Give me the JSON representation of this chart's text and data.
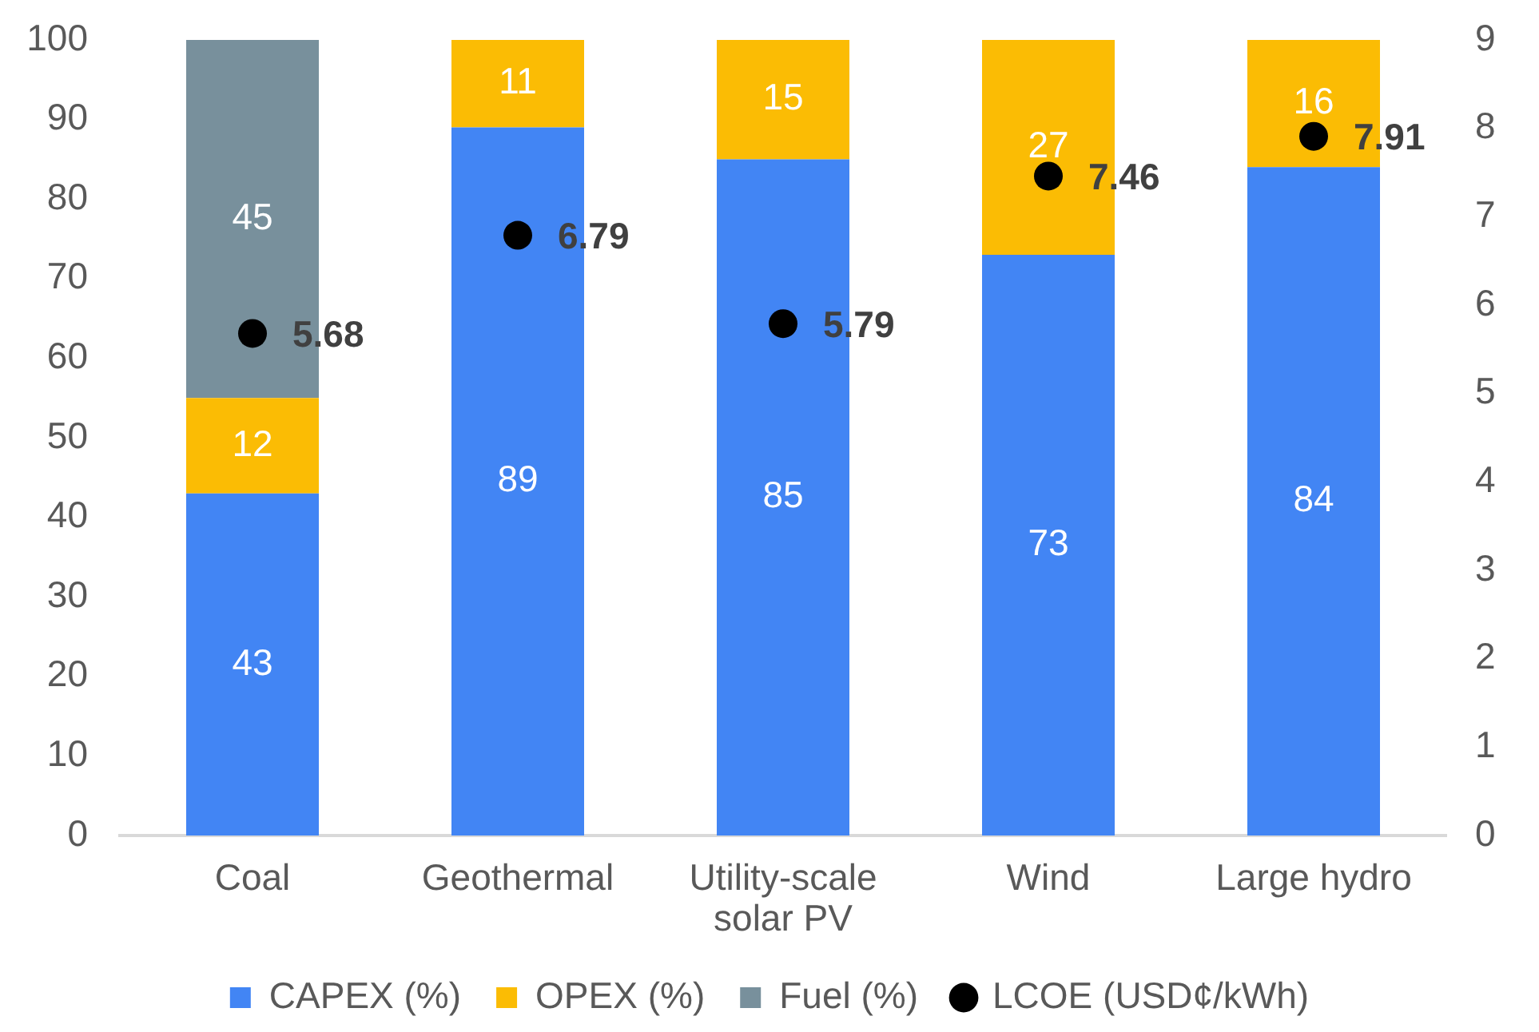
{
  "chart_data": {
    "type": "bar",
    "stacked": true,
    "categories": [
      "Coal",
      "Geothermal",
      "Utility-scale solar PV",
      "Wind",
      "Large hydro"
    ],
    "series": [
      {
        "name": "CAPEX (%)",
        "color": "#4285f4",
        "values": [
          43,
          89,
          85,
          73,
          84
        ]
      },
      {
        "name": "OPEX (%)",
        "color": "#fbbc04",
        "values": [
          12,
          11,
          15,
          27,
          16
        ]
      },
      {
        "name": "Fuel (%)",
        "color": "#78909c",
        "values": [
          45,
          null,
          null,
          null,
          null
        ]
      },
      {
        "name": "LCOE (USD¢/kWh)",
        "type": "scatter",
        "axis": "y2",
        "color": "#000000",
        "values": [
          5.68,
          6.79,
          5.79,
          7.46,
          7.91
        ]
      }
    ],
    "ylim": [
      0,
      100
    ],
    "yticks": [
      0,
      10,
      20,
      30,
      40,
      50,
      60,
      70,
      80,
      90,
      100
    ],
    "y2lim": [
      0,
      9
    ],
    "y2ticks": [
      0,
      1,
      2,
      3,
      4,
      5,
      6,
      7,
      8,
      9
    ],
    "data_labels": true,
    "legend": "bottom",
    "grid": false,
    "marker": "circle"
  }
}
